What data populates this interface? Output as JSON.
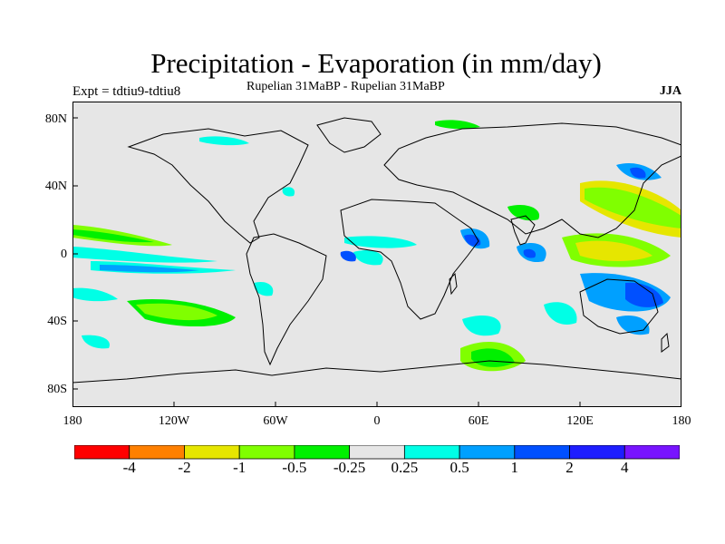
{
  "title": "Precipitation - Evaporation (in mm/day)",
  "subtitle_left": "Expt = tdtiu9-tdtiu8",
  "subtitle_center": "Rupelian  31MaBP - Rupelian  31MaBP",
  "season": "JJA",
  "lat_labels": [
    "80N",
    "40N",
    "0",
    "40S",
    "80S"
  ],
  "lon_labels": [
    "180",
    "120W",
    "60W",
    "0",
    "60E",
    "120E",
    "180"
  ],
  "colorbar": {
    "colors": [
      "#ff0000",
      "#ff8000",
      "#e6e600",
      "#80ff00",
      "#00f000",
      "#e6e6e6",
      "#00ffe6",
      "#00a0ff",
      "#0050ff",
      "#1e1eff",
      "#7814ff"
    ],
    "labels": [
      "-4",
      "-2",
      "-1",
      "-0.5",
      "-0.25",
      "0.25",
      "0.5",
      "1",
      "2",
      "4"
    ]
  },
  "colors": {
    "land_and_neutral": "#e6e6e6",
    "coastline": "#000000"
  }
}
